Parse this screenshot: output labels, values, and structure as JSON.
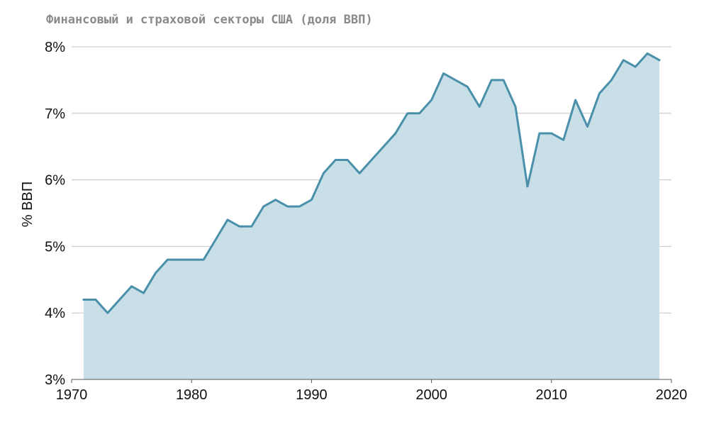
{
  "chart_data": {
    "type": "area",
    "title": "Финансовый и страховой секторы США (доля ВВП)",
    "xlabel": "",
    "ylabel": "% ВВП",
    "xlim": [
      1970,
      2020
    ],
    "ylim": [
      3,
      8
    ],
    "x_ticks": [
      1970,
      1980,
      1990,
      2000,
      2010,
      2020
    ],
    "x_tick_labels": [
      "1970",
      "1980",
      "1990",
      "2000",
      "2010",
      "2020"
    ],
    "y_ticks": [
      3,
      4,
      5,
      6,
      7,
      8
    ],
    "y_tick_labels": [
      "3%",
      "4%",
      "5%",
      "6%",
      "7%",
      "8%"
    ],
    "grid": "horizontal",
    "colors": {
      "line": "#4a90aa",
      "fill": "#c9dfe7"
    },
    "x": [
      1971,
      1972,
      1973,
      1974,
      1975,
      1976,
      1977,
      1978,
      1979,
      1980,
      1981,
      1982,
      1983,
      1984,
      1985,
      1986,
      1987,
      1988,
      1989,
      1990,
      1991,
      1992,
      1993,
      1994,
      1995,
      1996,
      1997,
      1998,
      1999,
      2000,
      2001,
      2002,
      2003,
      2004,
      2005,
      2006,
      2007,
      2008,
      2009,
      2010,
      2011,
      2012,
      2013,
      2014,
      2015,
      2016,
      2017,
      2018,
      2019
    ],
    "values": [
      4.2,
      4.2,
      4.0,
      4.2,
      4.4,
      4.3,
      4.6,
      4.8,
      4.8,
      4.8,
      4.8,
      5.1,
      5.4,
      5.3,
      5.3,
      5.6,
      5.7,
      5.6,
      5.6,
      5.7,
      6.1,
      6.3,
      6.3,
      6.1,
      6.3,
      6.5,
      6.7,
      7.0,
      7.0,
      7.2,
      7.6,
      7.5,
      7.4,
      7.1,
      7.5,
      7.5,
      7.1,
      5.9,
      6.7,
      6.7,
      6.6,
      7.2,
      6.8,
      7.3,
      7.5,
      7.8,
      7.7,
      7.9,
      7.8
    ]
  }
}
